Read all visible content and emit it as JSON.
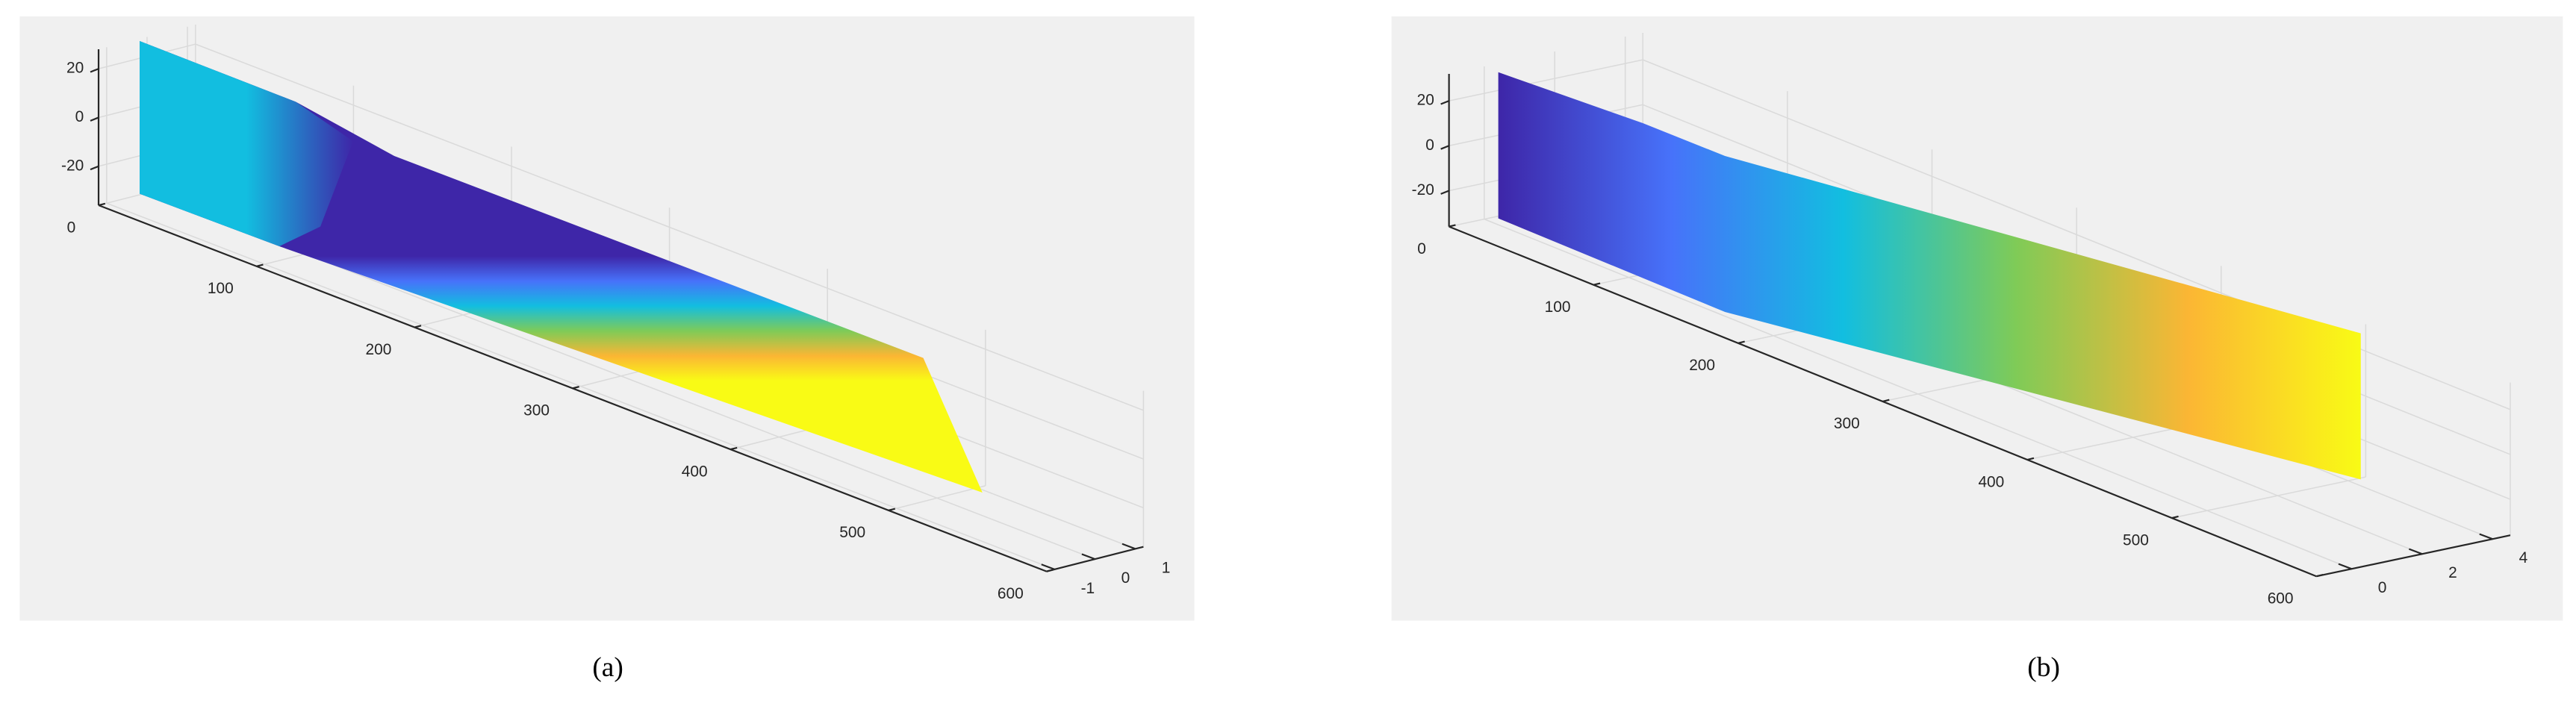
{
  "chart_data": [
    {
      "type": "surface3d",
      "caption": "(a)",
      "grid": true,
      "xlim": [
        0,
        600
      ],
      "xticks": [
        0,
        100,
        200,
        300,
        400,
        500,
        600
      ],
      "ylim": [
        -1.2,
        1.2
      ],
      "yticks": [
        -1,
        0,
        1
      ],
      "zlim": [
        -36,
        28
      ],
      "zticks": [
        -20,
        0,
        20
      ],
      "colormap": [
        "#3e26a8",
        "#4772fa",
        "#12bee0",
        "#7fcb57",
        "#fbb634",
        "#f9fb15"
      ]
    },
    {
      "type": "surface3d",
      "caption": "(b)",
      "grid": true,
      "xlim": [
        0,
        600
      ],
      "xticks": [
        0,
        100,
        200,
        300,
        400,
        500,
        600
      ],
      "ylim": [
        -1,
        4.5
      ],
      "yticks": [
        0,
        2,
        4
      ],
      "zlim": [
        -36,
        32
      ],
      "zticks": [
        -20,
        0,
        20
      ],
      "colormap": [
        "#3e26a8",
        "#4772fa",
        "#12bee0",
        "#7fcb57",
        "#fbb634",
        "#f9fb15"
      ]
    }
  ]
}
